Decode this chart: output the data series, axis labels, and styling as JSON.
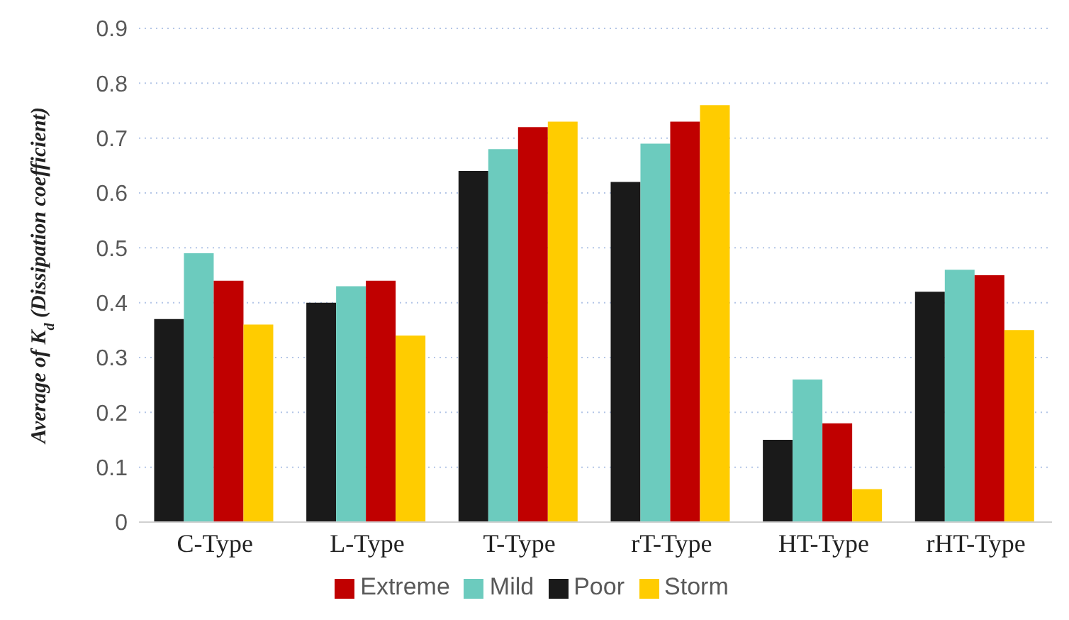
{
  "chart_data": {
    "type": "bar",
    "ylabel": "Average of K$_{d}$ (Dissipation coefficient)",
    "categories": [
      "C-Type",
      "L-Type",
      "T-Type",
      "rT-Type",
      "HT-Type",
      "rHT-Type"
    ],
    "series": [
      {
        "name": "Poor",
        "color": "#1a1a1a",
        "values": [
          0.37,
          0.4,
          0.64,
          0.62,
          0.15,
          0.42
        ]
      },
      {
        "name": "Mild",
        "color": "#6ccbbe",
        "values": [
          0.49,
          0.43,
          0.68,
          0.69,
          0.26,
          0.46
        ]
      },
      {
        "name": "Extreme",
        "color": "#c00000",
        "values": [
          0.44,
          0.44,
          0.72,
          0.73,
          0.18,
          0.45
        ]
      },
      {
        "name": "Storm",
        "color": "#ffcc00",
        "values": [
          0.36,
          0.34,
          0.73,
          0.76,
          0.06,
          0.35
        ]
      }
    ],
    "ylim": [
      0,
      0.9
    ],
    "yticks": [
      0,
      0.1,
      0.2,
      0.3,
      0.4,
      0.5,
      0.6,
      0.7,
      0.8,
      0.9
    ],
    "grid": "y",
    "legend": "bottom"
  }
}
